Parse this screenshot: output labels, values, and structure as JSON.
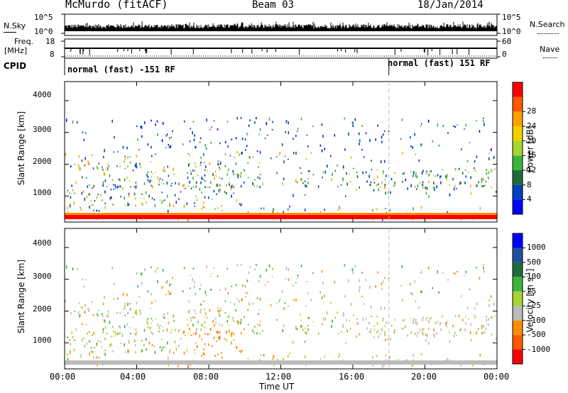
{
  "header": {
    "station": "McMurdo (fitACF)",
    "beam": "Beam 03",
    "date": "18/Jan/2014"
  },
  "noise_panel": {
    "left_label": "N.Sky",
    "right_label": "N.Search",
    "left_ticks": [
      "10^5",
      "10^0"
    ],
    "right_ticks": [
      "10^5",
      "10^0"
    ]
  },
  "freq_panel": {
    "left_label_1": "Freq.",
    "left_label_2": "[MHz]",
    "right_label": "Nave",
    "left_ticks": [
      "18",
      "8"
    ],
    "right_ticks": [
      "60",
      "0"
    ]
  },
  "cpid_panel": {
    "label": "CPID",
    "segments": [
      {
        "text": "normal (fast) -151 RF",
        "start_hour": 0
      },
      {
        "text": "normal (fast) 151 RF",
        "start_hour": 18
      }
    ]
  },
  "chart_data": [
    {
      "type": "heatmap",
      "title": "",
      "ylabel": "Slant Range [km]",
      "xlabel": "",
      "ylim": [
        180,
        4600
      ],
      "yticks": [
        1000,
        2000,
        3000,
        4000
      ],
      "colorbar": {
        "label": "Power [dB]",
        "ticks": [
          "4",
          "8",
          "12",
          "16",
          "20",
          "24",
          "28"
        ],
        "range": [
          0,
          30
        ],
        "colors": [
          "#0000ff",
          "#0040c0",
          "#1f6b3a",
          "#3cb43c",
          "#a6d432",
          "#f0d000",
          "#ffa000",
          "#ff5a00",
          "#ff0000"
        ]
      }
    },
    {
      "type": "heatmap",
      "title": "",
      "ylabel": "Slant Range [km]",
      "xlabel": "Time UT",
      "ylim": [
        180,
        4600
      ],
      "yticks": [
        1000,
        2000,
        3000,
        4000
      ],
      "xticks": [
        "00:00",
        "04:00",
        "08:00",
        "12:00",
        "16:00",
        "20:00",
        "00:00"
      ],
      "xlim_hours": [
        0,
        24
      ],
      "colorbar": {
        "label": "Velocity [m s^-1]",
        "ticks": [
          "1000",
          "500",
          "100",
          "25",
          "-25",
          "-100",
          "-500",
          "-1000"
        ],
        "colors": [
          "#0000ff",
          "#1f4fa0",
          "#1f6b3a",
          "#3cb43c",
          "#a6d432",
          "#bbbbbb",
          "#ff8c00",
          "#ff5a00",
          "#ff0000"
        ]
      }
    }
  ]
}
